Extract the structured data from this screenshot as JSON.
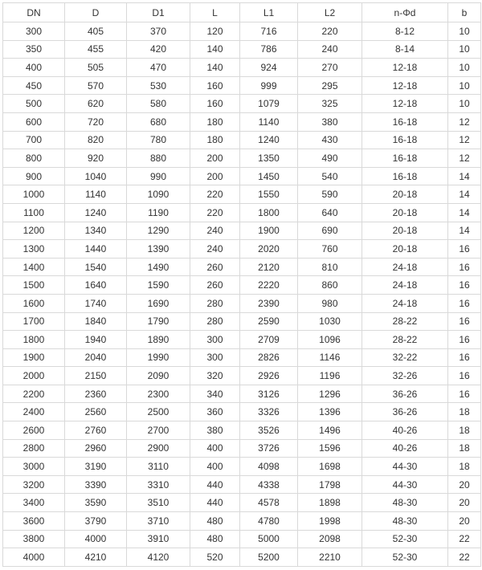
{
  "table": {
    "headers": [
      "DN",
      "D",
      "D1",
      "L",
      "L1",
      "L2",
      "n-Φd",
      "b"
    ],
    "rows": [
      [
        "300",
        "405",
        "370",
        "120",
        "716",
        "220",
        "8-12",
        "10"
      ],
      [
        "350",
        "455",
        "420",
        "140",
        "786",
        "240",
        "8-14",
        "10"
      ],
      [
        "400",
        "505",
        "470",
        "140",
        "924",
        "270",
        "12-18",
        "10"
      ],
      [
        "450",
        "570",
        "530",
        "160",
        "999",
        "295",
        "12-18",
        "10"
      ],
      [
        "500",
        "620",
        "580",
        "160",
        "1079",
        "325",
        "12-18",
        "10"
      ],
      [
        "600",
        "720",
        "680",
        "180",
        "1140",
        "380",
        "16-18",
        "12"
      ],
      [
        "700",
        "820",
        "780",
        "180",
        "1240",
        "430",
        "16-18",
        "12"
      ],
      [
        "800",
        "920",
        "880",
        "200",
        "1350",
        "490",
        "16-18",
        "12"
      ],
      [
        "900",
        "1040",
        "990",
        "200",
        "1450",
        "540",
        "16-18",
        "14"
      ],
      [
        "1000",
        "1140",
        "1090",
        "220",
        "1550",
        "590",
        "20-18",
        "14"
      ],
      [
        "1100",
        "1240",
        "1190",
        "220",
        "1800",
        "640",
        "20-18",
        "14"
      ],
      [
        "1200",
        "1340",
        "1290",
        "240",
        "1900",
        "690",
        "20-18",
        "14"
      ],
      [
        "1300",
        "1440",
        "1390",
        "240",
        "2020",
        "760",
        "20-18",
        "16"
      ],
      [
        "1400",
        "1540",
        "1490",
        "260",
        "2120",
        "810",
        "24-18",
        "16"
      ],
      [
        "1500",
        "1640",
        "1590",
        "260",
        "2220",
        "860",
        "24-18",
        "16"
      ],
      [
        "1600",
        "1740",
        "1690",
        "280",
        "2390",
        "980",
        "24-18",
        "16"
      ],
      [
        "1700",
        "1840",
        "1790",
        "280",
        "2590",
        "1030",
        "28-22",
        "16"
      ],
      [
        "1800",
        "1940",
        "1890",
        "300",
        "2709",
        "1096",
        "28-22",
        "16"
      ],
      [
        "1900",
        "2040",
        "1990",
        "300",
        "2826",
        "1146",
        "32-22",
        "16"
      ],
      [
        "2000",
        "2150",
        "2090",
        "320",
        "2926",
        "1196",
        "32-26",
        "16"
      ],
      [
        "2200",
        "2360",
        "2300",
        "340",
        "3126",
        "1296",
        "36-26",
        "16"
      ],
      [
        "2400",
        "2560",
        "2500",
        "360",
        "3326",
        "1396",
        "36-26",
        "18"
      ],
      [
        "2600",
        "2760",
        "2700",
        "380",
        "3526",
        "1496",
        "40-26",
        "18"
      ],
      [
        "2800",
        "2960",
        "2900",
        "400",
        "3726",
        "1596",
        "40-26",
        "18"
      ],
      [
        "3000",
        "3190",
        "3110",
        "400",
        "4098",
        "1698",
        "44-30",
        "18"
      ],
      [
        "3200",
        "3390",
        "3310",
        "440",
        "4338",
        "1798",
        "44-30",
        "20"
      ],
      [
        "3400",
        "3590",
        "3510",
        "440",
        "4578",
        "1898",
        "48-30",
        "20"
      ],
      [
        "3600",
        "3790",
        "3710",
        "480",
        "4780",
        "1998",
        "48-30",
        "20"
      ],
      [
        "3800",
        "4000",
        "3910",
        "480",
        "5000",
        "2098",
        "52-30",
        "22"
      ],
      [
        "4000",
        "4210",
        "4120",
        "520",
        "5200",
        "2210",
        "52-30",
        "22"
      ]
    ]
  }
}
